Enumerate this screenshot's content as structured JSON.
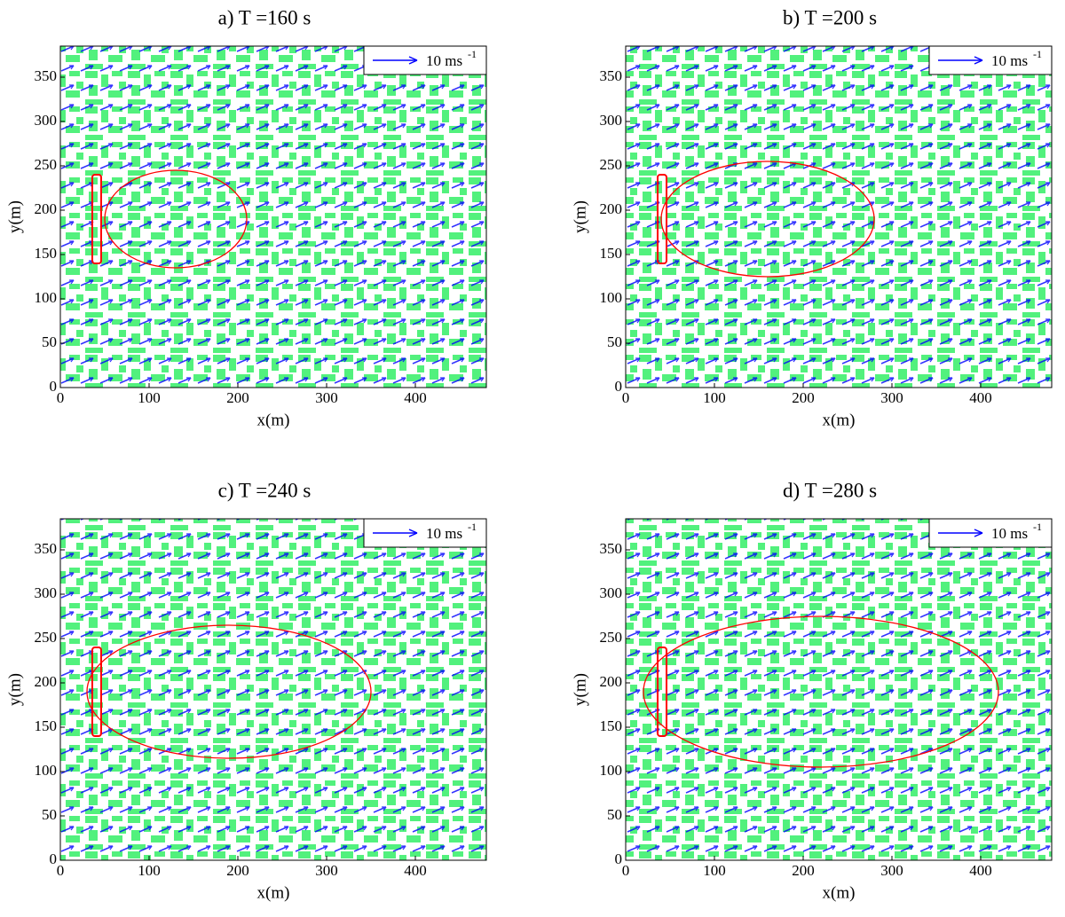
{
  "chart_data": [
    {
      "type": "quiver",
      "title": "a) T =160 s",
      "x_label": "x(m)",
      "y_label": "y(m)",
      "xlim": [
        0,
        480
      ],
      "ylim": [
        0,
        385
      ],
      "xticks": [
        0,
        100,
        200,
        300,
        400
      ],
      "yticks": [
        0,
        50,
        100,
        150,
        200,
        250,
        300,
        350
      ],
      "legend": {
        "text": "10 ms",
        "superscript": "-1"
      },
      "arrow_color": "#0000ff",
      "background_color": "#33ee66",
      "contour_color": "#ff0000"
    },
    {
      "type": "quiver",
      "title": "b) T =200 s",
      "x_label": "x(m)",
      "y_label": "y(m)",
      "xlim": [
        0,
        480
      ],
      "ylim": [
        0,
        385
      ],
      "xticks": [
        0,
        100,
        200,
        300,
        400
      ],
      "yticks": [
        0,
        50,
        100,
        150,
        200,
        250,
        300,
        350
      ],
      "legend": {
        "text": "10 ms",
        "superscript": "-1"
      },
      "arrow_color": "#0000ff",
      "background_color": "#33ee66",
      "contour_color": "#ff0000"
    },
    {
      "type": "quiver",
      "title": "c) T =240 s",
      "x_label": "x(m)",
      "y_label": "y(m)",
      "xlim": [
        0,
        480
      ],
      "ylim": [
        0,
        385
      ],
      "xticks": [
        0,
        100,
        200,
        300,
        400
      ],
      "yticks": [
        0,
        50,
        100,
        150,
        200,
        250,
        300,
        350
      ],
      "legend": {
        "text": "10 ms",
        "superscript": "-1"
      },
      "arrow_color": "#0000ff",
      "background_color": "#33ee66",
      "contour_color": "#ff0000"
    },
    {
      "type": "quiver",
      "title": "d) T =280 s",
      "x_label": "x(m)",
      "y_label": "y(m)",
      "xlim": [
        0,
        480
      ],
      "ylim": [
        0,
        385
      ],
      "xticks": [
        0,
        100,
        200,
        300,
        400
      ],
      "yticks": [
        0,
        50,
        100,
        150,
        200,
        250,
        300,
        350
      ],
      "legend": {
        "text": "10 ms",
        "superscript": "-1"
      },
      "arrow_color": "#0000ff",
      "background_color": "#33ee66",
      "contour_color": "#ff0000"
    }
  ]
}
